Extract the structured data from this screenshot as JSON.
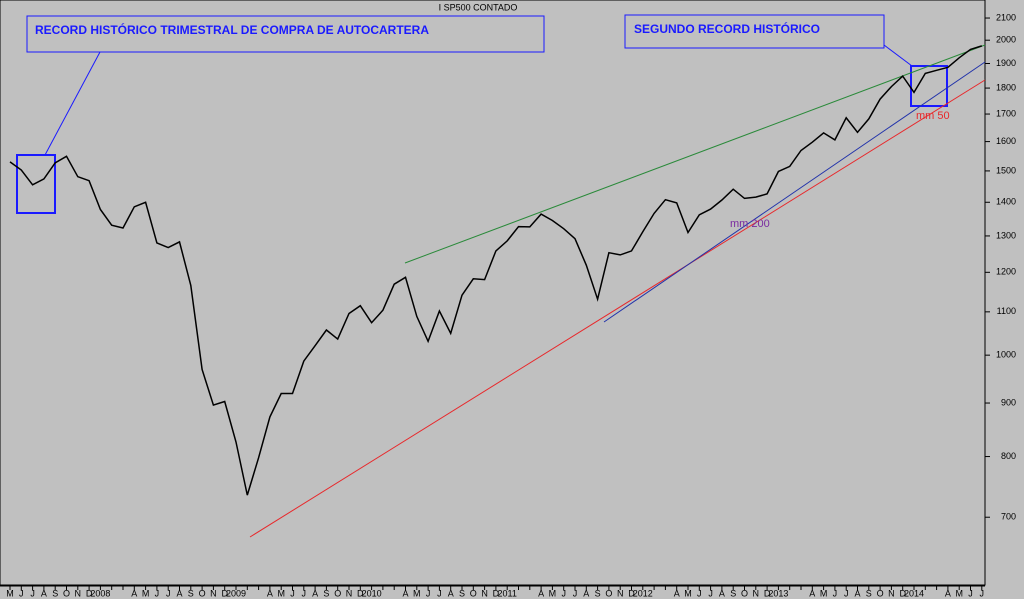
{
  "chart_data": {
    "type": "line",
    "title": "I SP500 CONTADO",
    "log_scale": true,
    "color": "#000000",
    "annotations": [
      "RECORD HISTÓRICO TRIMESTRAL DE COMPRA DE AUTOCARTERA",
      "SEGUNDO RECORD HISTÓRICO",
      "mm 50",
      "mm 200"
    ],
    "categories": [
      "M",
      "J",
      "J",
      "A",
      "S",
      "O",
      "N",
      "D",
      "2008",
      null,
      null,
      "A",
      "M",
      "J",
      "J",
      "A",
      "S",
      "O",
      "N",
      "D",
      "2009",
      null,
      null,
      "A",
      "M",
      "J",
      "J",
      "A",
      "S",
      "O",
      "N",
      "D",
      "2010",
      null,
      null,
      "A",
      "M",
      "J",
      "J",
      "A",
      "S",
      "O",
      "N",
      "D",
      "2011",
      null,
      null,
      "A",
      "M",
      "J",
      "J",
      "A",
      "S",
      "O",
      "N",
      "D",
      "2012",
      null,
      null,
      "A",
      "M",
      "J",
      "J",
      "A",
      "S",
      "O",
      "N",
      "D",
      "2013",
      null,
      null,
      "A",
      "M",
      "J",
      "J",
      "A",
      "S",
      "O",
      "N",
      "D",
      "2014",
      null,
      null,
      "A",
      "M",
      "J",
      "J"
    ],
    "values": [
      1530,
      1503,
      1455,
      1474,
      1527,
      1549,
      1481,
      1468,
      1378,
      1331,
      1323,
      1386,
      1400,
      1280,
      1267,
      1283,
      1166,
      969,
      896,
      903,
      826,
      735,
      798,
      873,
      919,
      919,
      987,
      1021,
      1057,
      1036,
      1096,
      1115,
      1074,
      1104,
      1169,
      1187,
      1089,
      1031,
      1102,
      1049,
      1141,
      1183,
      1181,
      1258,
      1286,
      1327,
      1326,
      1364,
      1345,
      1321,
      1292,
      1219,
      1131,
      1253,
      1247,
      1258,
      1312,
      1366,
      1408,
      1398,
      1310,
      1362,
      1379,
      1407,
      1441,
      1412,
      1416,
      1426,
      1498,
      1515,
      1569,
      1598,
      1631,
      1606,
      1686,
      1633,
      1682,
      1757,
      1806,
      1848,
      1783,
      1859,
      1872,
      1884,
      1924,
      1960,
      1975
    ],
    "ylim": [
      603,
      2185
    ],
    "yticks": [
      700,
      800,
      900,
      1000,
      1100,
      1200,
      1300,
      1400,
      1500,
      1600,
      1700,
      1800,
      1900,
      2000,
      2100
    ]
  }
}
